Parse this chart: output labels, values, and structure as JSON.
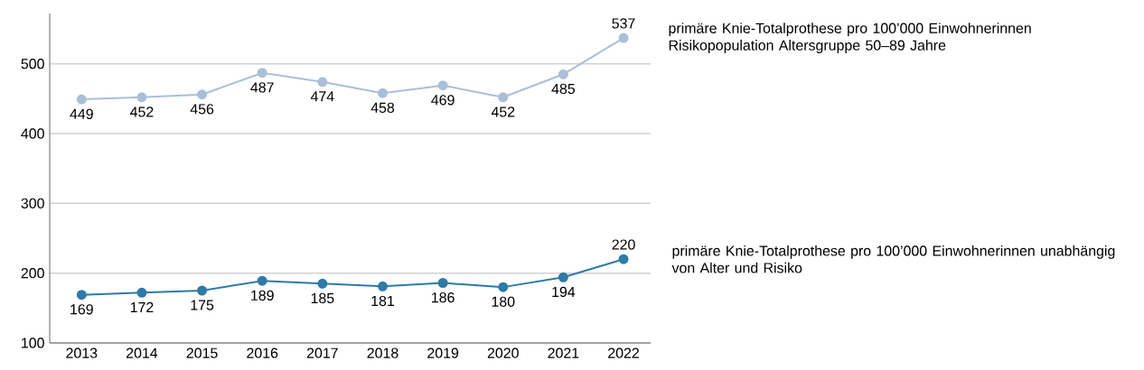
{
  "chart_data": {
    "type": "line",
    "categories": [
      "2013",
      "2014",
      "2015",
      "2016",
      "2017",
      "2018",
      "2019",
      "2020",
      "2021",
      "2022"
    ],
    "series": [
      {
        "name": "primäre Knie-Totalprothese pro 100’000 Einwohnerinnen Risikopopulation Altersgruppe 50–89 Jahre",
        "color": "#a9bfd8",
        "values": [
          449,
          452,
          456,
          487,
          474,
          458,
          469,
          452,
          485,
          537
        ]
      },
      {
        "name": "primäre Knie-Totalprothese pro 100’000 Einwohnerinnen unabhängig von Alter und Risiko",
        "color": "#2f7aa6",
        "values": [
          169,
          172,
          175,
          189,
          185,
          181,
          186,
          180,
          194,
          220
        ]
      }
    ],
    "ylim": [
      100,
      572
    ],
    "yticks": [
      100,
      200,
      300,
      400,
      500
    ],
    "grid": "y",
    "data_labels": true,
    "marker": "circle",
    "line_style": "solid"
  }
}
